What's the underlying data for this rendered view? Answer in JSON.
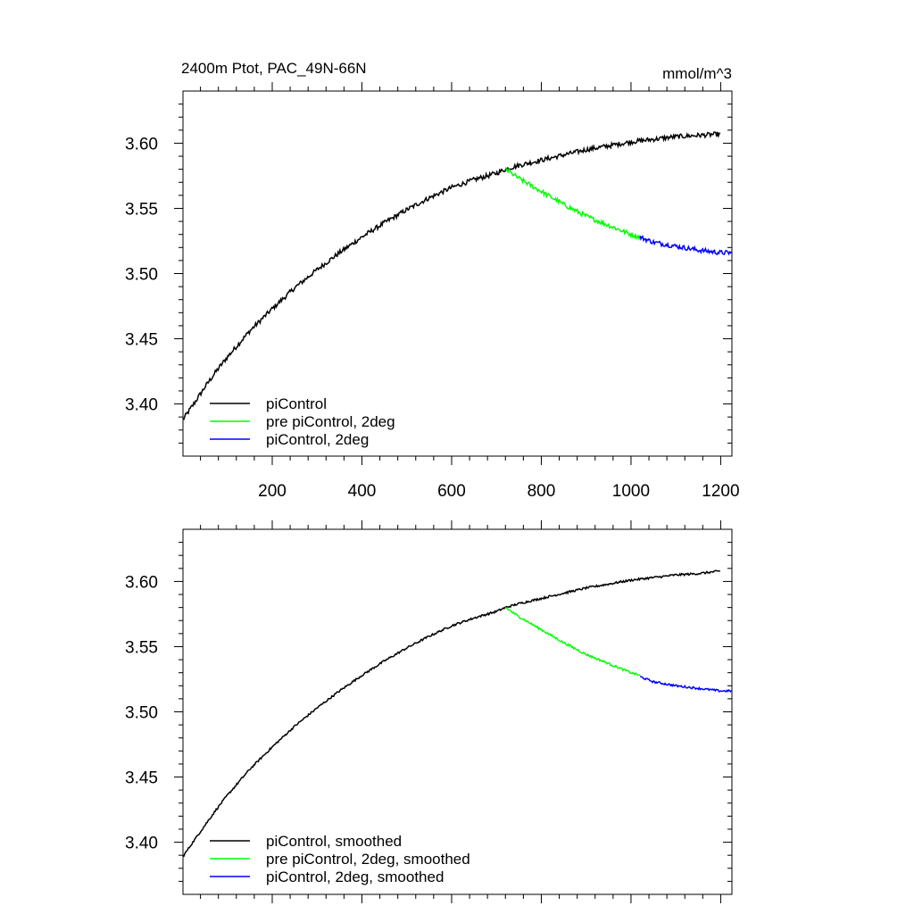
{
  "header": {
    "left_title": "2400m Ptot, PAC_49N-66N",
    "right_title": "mmol/m^3"
  },
  "colors": {
    "piControl": "#000000",
    "pre_piControl_2deg": "#00ff00",
    "piControl_2deg": "#0000ff"
  },
  "chart_data": [
    {
      "type": "line",
      "panel": "top",
      "xlim": [
        1,
        1225
      ],
      "ylim": [
        3.36,
        3.64
      ],
      "x_ticks": [
        200,
        400,
        600,
        800,
        1000,
        1200
      ],
      "x_tick_labels": [
        "200",
        "400",
        "600",
        "800",
        "1000",
        "1200"
      ],
      "y_ticks": [
        3.4,
        3.45,
        3.5,
        3.55,
        3.6
      ],
      "y_tick_labels": [
        "3.40",
        "3.45",
        "3.50",
        "3.55",
        "3.60"
      ],
      "legend_position": "bottom-left",
      "grid": false,
      "series": [
        {
          "name": "piControl",
          "color": "#000000",
          "x": [
            1,
            25,
            50,
            75,
            100,
            125,
            150,
            200,
            250,
            300,
            350,
            400,
            450,
            500,
            550,
            600,
            650,
            700,
            720,
            750,
            800,
            850,
            900,
            950,
            1000,
            1050,
            1100,
            1150,
            1200
          ],
          "y": [
            3.388,
            3.4,
            3.413,
            3.425,
            3.436,
            3.446,
            3.456,
            3.473,
            3.489,
            3.503,
            3.516,
            3.528,
            3.539,
            3.549,
            3.558,
            3.566,
            3.572,
            3.577,
            3.58,
            3.583,
            3.587,
            3.591,
            3.595,
            3.598,
            3.601,
            3.603,
            3.605,
            3.606,
            3.607
          ]
        },
        {
          "name": "pre piControl, 2deg",
          "color": "#00ff00",
          "x": [
            720,
            750,
            800,
            850,
            900,
            950,
            1000,
            1020
          ],
          "y": [
            3.58,
            3.573,
            3.563,
            3.553,
            3.544,
            3.537,
            3.53,
            3.528
          ]
        },
        {
          "name": "piControl, 2deg",
          "color": "#0000ff",
          "x": [
            1020,
            1050,
            1100,
            1150,
            1200,
            1225
          ],
          "y": [
            3.528,
            3.524,
            3.521,
            3.518,
            3.516,
            3.516
          ]
        }
      ]
    },
    {
      "type": "line",
      "panel": "bottom",
      "xlim": [
        1,
        1225
      ],
      "ylim": [
        3.36,
        3.64
      ],
      "y_ticks": [
        3.4,
        3.45,
        3.5,
        3.55,
        3.6
      ],
      "y_tick_labels": [
        "3.40",
        "3.45",
        "3.50",
        "3.55",
        "3.60"
      ],
      "legend_position": "bottom-left",
      "grid": false,
      "series": [
        {
          "name": "piControl, smoothed",
          "color": "#000000",
          "x": [
            1,
            25,
            50,
            75,
            100,
            125,
            150,
            200,
            250,
            300,
            350,
            400,
            450,
            500,
            550,
            600,
            650,
            700,
            720,
            750,
            800,
            850,
            900,
            950,
            1000,
            1050,
            1100,
            1150,
            1200
          ],
          "y": [
            3.389,
            3.401,
            3.413,
            3.425,
            3.436,
            3.446,
            3.456,
            3.473,
            3.489,
            3.503,
            3.516,
            3.528,
            3.539,
            3.549,
            3.558,
            3.566,
            3.572,
            3.577,
            3.58,
            3.583,
            3.587,
            3.591,
            3.595,
            3.598,
            3.601,
            3.603,
            3.605,
            3.606,
            3.608
          ]
        },
        {
          "name": "pre piControl, 2deg, smoothed",
          "color": "#00ff00",
          "x": [
            720,
            750,
            800,
            850,
            900,
            950,
            1000,
            1020
          ],
          "y": [
            3.58,
            3.573,
            3.563,
            3.553,
            3.544,
            3.537,
            3.53,
            3.528
          ]
        },
        {
          "name": "piControl, 2deg, smoothed",
          "color": "#0000ff",
          "x": [
            1020,
            1050,
            1100,
            1150,
            1200,
            1225
          ],
          "y": [
            3.527,
            3.523,
            3.52,
            3.518,
            3.516,
            3.516
          ]
        }
      ]
    }
  ]
}
